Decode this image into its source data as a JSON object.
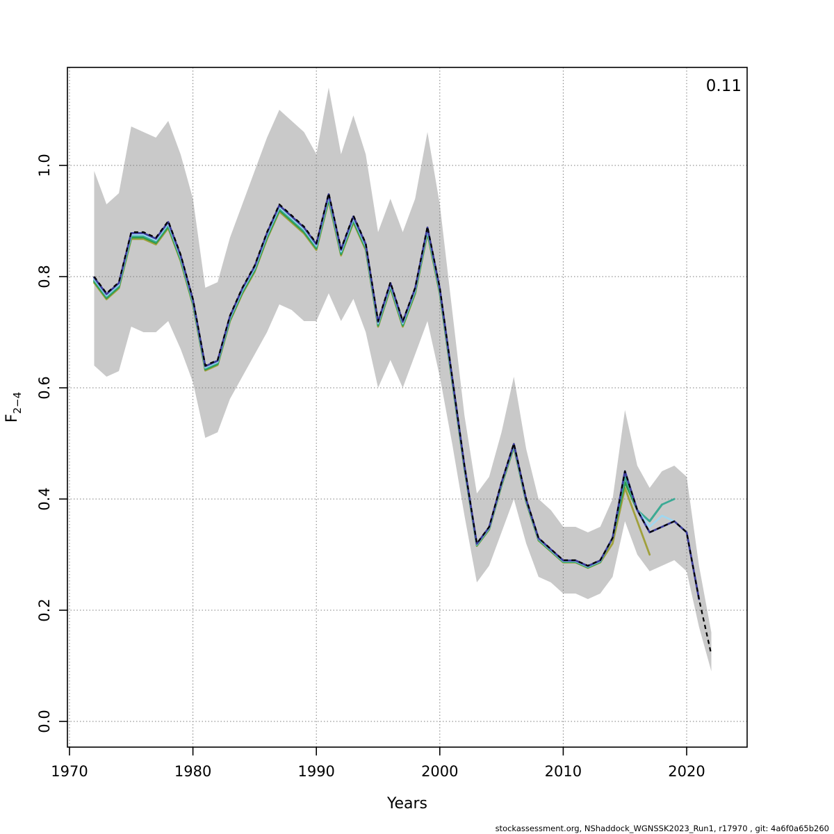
{
  "page": {
    "background": "#ffffff"
  },
  "axes": {
    "xlabel": "Years",
    "ylabel_base": "F",
    "ylabel_sub": "2−4",
    "x_ticks": [
      1970,
      1980,
      1990,
      2000,
      2010,
      2020
    ],
    "y_ticks": [
      0.0,
      0.2,
      0.4,
      0.6,
      0.8,
      1.0
    ],
    "y_tick_labels": [
      "0.0",
      "0.2",
      "0.4",
      "0.6",
      "0.8",
      "1.0"
    ]
  },
  "footer": {
    "text": "stockassessment.org, NShaddock_WGNSSK2023_Run1, r17970 , git: 4a6f0a65b260"
  },
  "chart_data": {
    "type": "line",
    "title": "",
    "xlabel": "Years",
    "ylabel": "F2-4",
    "corner_label": "0.11",
    "grid": true,
    "x_range": [
      1969.8,
      2024.9
    ],
    "y_range": [
      -0.05,
      1.18
    ],
    "years": [
      1972,
      1973,
      1974,
      1975,
      1976,
      1977,
      1978,
      1979,
      1980,
      1981,
      1982,
      1983,
      1984,
      1985,
      1986,
      1987,
      1988,
      1989,
      1990,
      1991,
      1992,
      1993,
      1994,
      1995,
      1996,
      1997,
      1998,
      1999,
      2000,
      2001,
      2002,
      2003,
      2004,
      2005,
      2006,
      2007,
      2008,
      2009,
      2010,
      2011,
      2012,
      2013,
      2014,
      2015,
      2016,
      2017,
      2018,
      2019,
      2020,
      2021,
      2022
    ],
    "main_series": {
      "name": "Fbar 2-4 estimate",
      "color": "#000000",
      "style": "dashed",
      "values": [
        0.8,
        0.77,
        0.79,
        0.88,
        0.88,
        0.87,
        0.9,
        0.84,
        0.76,
        0.64,
        0.65,
        0.73,
        0.78,
        0.82,
        0.88,
        0.93,
        0.91,
        0.89,
        0.86,
        0.95,
        0.85,
        0.91,
        0.86,
        0.72,
        0.79,
        0.72,
        0.78,
        0.89,
        0.78,
        0.62,
        0.46,
        0.32,
        0.35,
        0.43,
        0.5,
        0.4,
        0.33,
        0.31,
        0.29,
        0.29,
        0.28,
        0.29,
        0.33,
        0.45,
        0.38,
        0.34,
        0.35,
        0.36,
        0.34,
        0.22,
        0.12
      ]
    },
    "band": {
      "name": "confidence band",
      "color": "#c9c9c9",
      "lo": [
        0.64,
        0.62,
        0.63,
        0.71,
        0.7,
        0.7,
        0.72,
        0.67,
        0.61,
        0.51,
        0.52,
        0.58,
        0.62,
        0.66,
        0.7,
        0.75,
        0.74,
        0.72,
        0.72,
        0.77,
        0.72,
        0.76,
        0.7,
        0.6,
        0.65,
        0.6,
        0.66,
        0.72,
        0.62,
        0.5,
        0.37,
        0.25,
        0.28,
        0.34,
        0.4,
        0.32,
        0.26,
        0.25,
        0.23,
        0.23,
        0.22,
        0.23,
        0.26,
        0.36,
        0.3,
        0.27,
        0.28,
        0.29,
        0.27,
        0.17,
        0.09
      ],
      "hi": [
        0.99,
        0.93,
        0.95,
        1.07,
        1.06,
        1.05,
        1.08,
        1.02,
        0.94,
        0.78,
        0.79,
        0.87,
        0.93,
        0.99,
        1.05,
        1.1,
        1.08,
        1.06,
        1.02,
        1.14,
        1.02,
        1.09,
        1.02,
        0.88,
        0.94,
        0.88,
        0.94,
        1.06,
        0.93,
        0.74,
        0.55,
        0.41,
        0.44,
        0.52,
        0.62,
        0.49,
        0.4,
        0.38,
        0.35,
        0.35,
        0.34,
        0.35,
        0.4,
        0.56,
        0.46,
        0.42,
        0.45,
        0.46,
        0.44,
        0.28,
        0.16
      ]
    },
    "retro_peels": [
      {
        "name": "peel-2017",
        "end_year": 2017,
        "color": "#a0a03c",
        "offset_factor": 0.986,
        "tail_start": 2014,
        "tail": [
          0.32,
          0.42,
          0.36,
          0.3
        ]
      },
      {
        "name": "peel-2018",
        "end_year": 2018,
        "color": "#2d9b46",
        "offset_factor": 0.989,
        "tail_start": 2014,
        "tail": [
          0.33,
          0.43,
          0.38,
          0.36,
          0.39
        ]
      },
      {
        "name": "peel-2019",
        "end_year": 2019,
        "color": "#3caa96",
        "offset_factor": 0.992,
        "tail_start": 2014,
        "tail": [
          0.33,
          0.44,
          0.38,
          0.36,
          0.39,
          0.4
        ]
      },
      {
        "name": "peel-2020",
        "end_year": 2020,
        "color": "#a0d7f0",
        "offset_factor": 0.995,
        "tail_start": 2014,
        "tail": [
          0.33,
          0.45,
          0.38,
          0.35,
          0.37,
          0.36,
          0.34
        ]
      },
      {
        "name": "peel-2021",
        "end_year": 2021,
        "color": "#3c3c9b",
        "offset_factor": 0.998,
        "tail_start": 2014,
        "tail": [
          0.33,
          0.45,
          0.38,
          0.34,
          0.35,
          0.36,
          0.34,
          0.22
        ]
      }
    ]
  }
}
